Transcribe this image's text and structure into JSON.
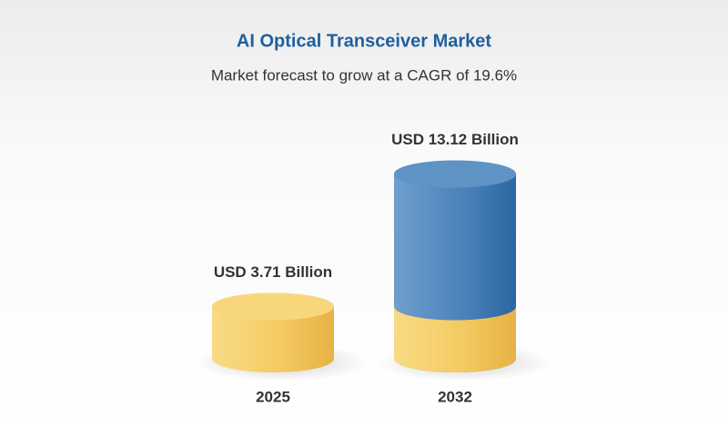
{
  "chart_data": {
    "type": "cylinder",
    "title": "AI Optical Transceiver Market",
    "subtitle": "Market forecast to grow at a CAGR of 19.6%",
    "categories": [
      "2025",
      "2032"
    ],
    "values": [
      3.71,
      13.12
    ],
    "value_labels": [
      "USD 3.71 Billion",
      "USD 13.12 Billion"
    ],
    "colors": [
      "#f2c75c",
      "#4a80b8"
    ]
  }
}
